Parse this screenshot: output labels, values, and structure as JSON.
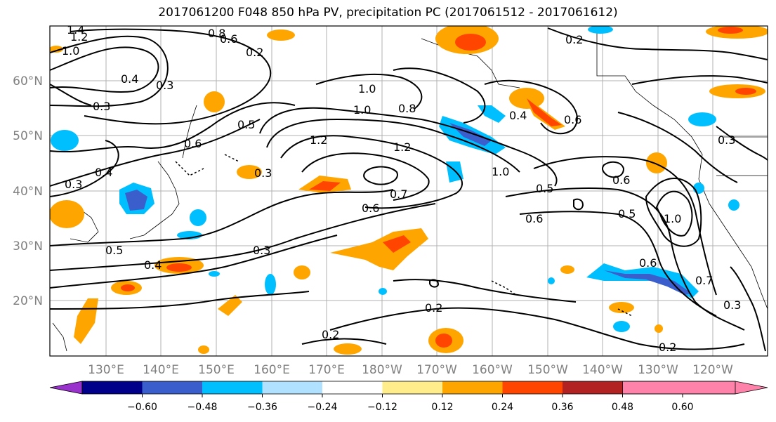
{
  "title": "2017061200 F048 850 hPa PV, precipitation PC (2017061512 - 2017061612)",
  "lat_labels": [
    "60°N",
    "50°N",
    "40°N",
    "30°N",
    "20°N"
  ],
  "lon_labels": [
    "130°E",
    "140°E",
    "150°E",
    "160°E",
    "170°E",
    "180°W",
    "170°W",
    "160°W",
    "150°W",
    "140°W",
    "130°W",
    "120°W"
  ],
  "contour_labels": [
    "1.4",
    "1.2",
    "1.0",
    "0.8",
    "0.6",
    "0.2",
    "0.3",
    "0.4",
    "0.5",
    "0.6",
    "0.3",
    "0.3",
    "1.0",
    "1.0",
    "0.8",
    "1.2",
    "1.2",
    "0.4",
    "0.6",
    "1.0",
    "0.5",
    "0.6",
    "0.6",
    "0.5",
    "1.0",
    "0.7",
    "0.6",
    "0.3",
    "0.2",
    "0.2",
    "0.2",
    "0.2",
    "0.4",
    "0.3",
    "0.7",
    "0.3",
    "0.4",
    "0.5",
    "0.3",
    "0.6"
  ],
  "colorbar": {
    "colors": [
      "#9932cc",
      "#00008b",
      "#3a5fcd",
      "#00bfff",
      "#b0e2ff",
      "#ffffff",
      "#ffec8b",
      "#ffa500",
      "#ff4500",
      "#b22222",
      "#ff82ab"
    ],
    "ticks": [
      "−0.60",
      "−0.48",
      "−0.36",
      "−0.24",
      "−0.12",
      "0.12",
      "0.24",
      "0.36",
      "0.48",
      "0.60"
    ]
  }
}
